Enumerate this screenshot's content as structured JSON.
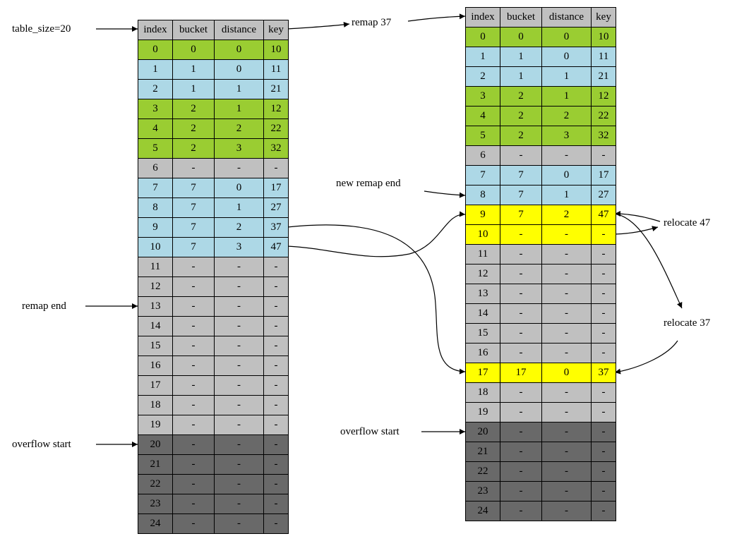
{
  "palette": {
    "green": "#9acd32",
    "blue": "#add8e6",
    "gray": "#c0c0c0",
    "dark": "#696969",
    "yellow": "#ffff00"
  },
  "labels": {
    "table_size": "table_size=20",
    "remap_37": "remap 37",
    "remap_end": "remap end",
    "overflow_left": "overflow start",
    "new_remap_end": "new remap end",
    "relocate_47": "relocate 47",
    "relocate_37": "relocate 37",
    "overflow_right": "overflow start"
  },
  "left_table": {
    "header": [
      "index",
      "bucket",
      "distance",
      "key"
    ],
    "rows": [
      {
        "cells": [
          "0",
          "0",
          "0",
          "10"
        ],
        "color": "green"
      },
      {
        "cells": [
          "1",
          "1",
          "0",
          "11"
        ],
        "color": "blue"
      },
      {
        "cells": [
          "2",
          "1",
          "1",
          "21"
        ],
        "color": "blue"
      },
      {
        "cells": [
          "3",
          "2",
          "1",
          "12"
        ],
        "color": "green"
      },
      {
        "cells": [
          "4",
          "2",
          "2",
          "22"
        ],
        "color": "green"
      },
      {
        "cells": [
          "5",
          "2",
          "3",
          "32"
        ],
        "color": "green"
      },
      {
        "cells": [
          "6",
          "-",
          "-",
          "-"
        ],
        "color": "gray"
      },
      {
        "cells": [
          "7",
          "7",
          "0",
          "17"
        ],
        "color": "blue"
      },
      {
        "cells": [
          "8",
          "7",
          "1",
          "27"
        ],
        "color": "blue"
      },
      {
        "cells": [
          "9",
          "7",
          "2",
          "37"
        ],
        "color": "blue"
      },
      {
        "cells": [
          "10",
          "7",
          "3",
          "47"
        ],
        "color": "blue"
      },
      {
        "cells": [
          "11",
          "-",
          "-",
          "-"
        ],
        "color": "gray"
      },
      {
        "cells": [
          "12",
          "-",
          "-",
          "-"
        ],
        "color": "gray"
      },
      {
        "cells": [
          "13",
          "-",
          "-",
          "-"
        ],
        "color": "gray"
      },
      {
        "cells": [
          "14",
          "-",
          "-",
          "-"
        ],
        "color": "gray"
      },
      {
        "cells": [
          "15",
          "-",
          "-",
          "-"
        ],
        "color": "gray"
      },
      {
        "cells": [
          "16",
          "-",
          "-",
          "-"
        ],
        "color": "gray"
      },
      {
        "cells": [
          "17",
          "-",
          "-",
          "-"
        ],
        "color": "gray"
      },
      {
        "cells": [
          "18",
          "-",
          "-",
          "-"
        ],
        "color": "gray"
      },
      {
        "cells": [
          "19",
          "-",
          "-",
          "-"
        ],
        "color": "gray"
      },
      {
        "cells": [
          "20",
          "-",
          "-",
          "-"
        ],
        "color": "dark"
      },
      {
        "cells": [
          "21",
          "-",
          "-",
          "-"
        ],
        "color": "dark"
      },
      {
        "cells": [
          "22",
          "-",
          "-",
          "-"
        ],
        "color": "dark"
      },
      {
        "cells": [
          "23",
          "-",
          "-",
          "-"
        ],
        "color": "dark"
      },
      {
        "cells": [
          "24",
          "-",
          "-",
          "-"
        ],
        "color": "dark"
      }
    ]
  },
  "right_table": {
    "header": [
      "index",
      "bucket",
      "distance",
      "key"
    ],
    "rows": [
      {
        "cells": [
          "0",
          "0",
          "0",
          "10"
        ],
        "color": "green"
      },
      {
        "cells": [
          "1",
          "1",
          "0",
          "11"
        ],
        "color": "blue"
      },
      {
        "cells": [
          "2",
          "1",
          "1",
          "21"
        ],
        "color": "blue"
      },
      {
        "cells": [
          "3",
          "2",
          "1",
          "12"
        ],
        "color": "green"
      },
      {
        "cells": [
          "4",
          "2",
          "2",
          "22"
        ],
        "color": "green"
      },
      {
        "cells": [
          "5",
          "2",
          "3",
          "32"
        ],
        "color": "green"
      },
      {
        "cells": [
          "6",
          "-",
          "-",
          "-"
        ],
        "color": "gray"
      },
      {
        "cells": [
          "7",
          "7",
          "0",
          "17"
        ],
        "color": "blue"
      },
      {
        "cells": [
          "8",
          "7",
          "1",
          "27"
        ],
        "color": "blue"
      },
      {
        "cells": [
          "9",
          "7",
          "2",
          "47"
        ],
        "color": "yellow"
      },
      {
        "cells": [
          "10",
          "-",
          "-",
          "-"
        ],
        "color": "yellow"
      },
      {
        "cells": [
          "11",
          "-",
          "-",
          "-"
        ],
        "color": "gray"
      },
      {
        "cells": [
          "12",
          "-",
          "-",
          "-"
        ],
        "color": "gray"
      },
      {
        "cells": [
          "13",
          "-",
          "-",
          "-"
        ],
        "color": "gray"
      },
      {
        "cells": [
          "14",
          "-",
          "-",
          "-"
        ],
        "color": "gray"
      },
      {
        "cells": [
          "15",
          "-",
          "-",
          "-"
        ],
        "color": "gray"
      },
      {
        "cells": [
          "16",
          "-",
          "-",
          "-"
        ],
        "color": "gray"
      },
      {
        "cells": [
          "17",
          "17",
          "0",
          "37"
        ],
        "color": "yellow"
      },
      {
        "cells": [
          "18",
          "-",
          "-",
          "-"
        ],
        "color": "gray"
      },
      {
        "cells": [
          "19",
          "-",
          "-",
          "-"
        ],
        "color": "gray"
      },
      {
        "cells": [
          "20",
          "-",
          "-",
          "-"
        ],
        "color": "dark"
      },
      {
        "cells": [
          "21",
          "-",
          "-",
          "-"
        ],
        "color": "dark"
      },
      {
        "cells": [
          "22",
          "-",
          "-",
          "-"
        ],
        "color": "dark"
      },
      {
        "cells": [
          "23",
          "-",
          "-",
          "-"
        ],
        "color": "dark"
      },
      {
        "cells": [
          "24",
          "-",
          "-",
          "-"
        ],
        "color": "dark"
      }
    ]
  }
}
